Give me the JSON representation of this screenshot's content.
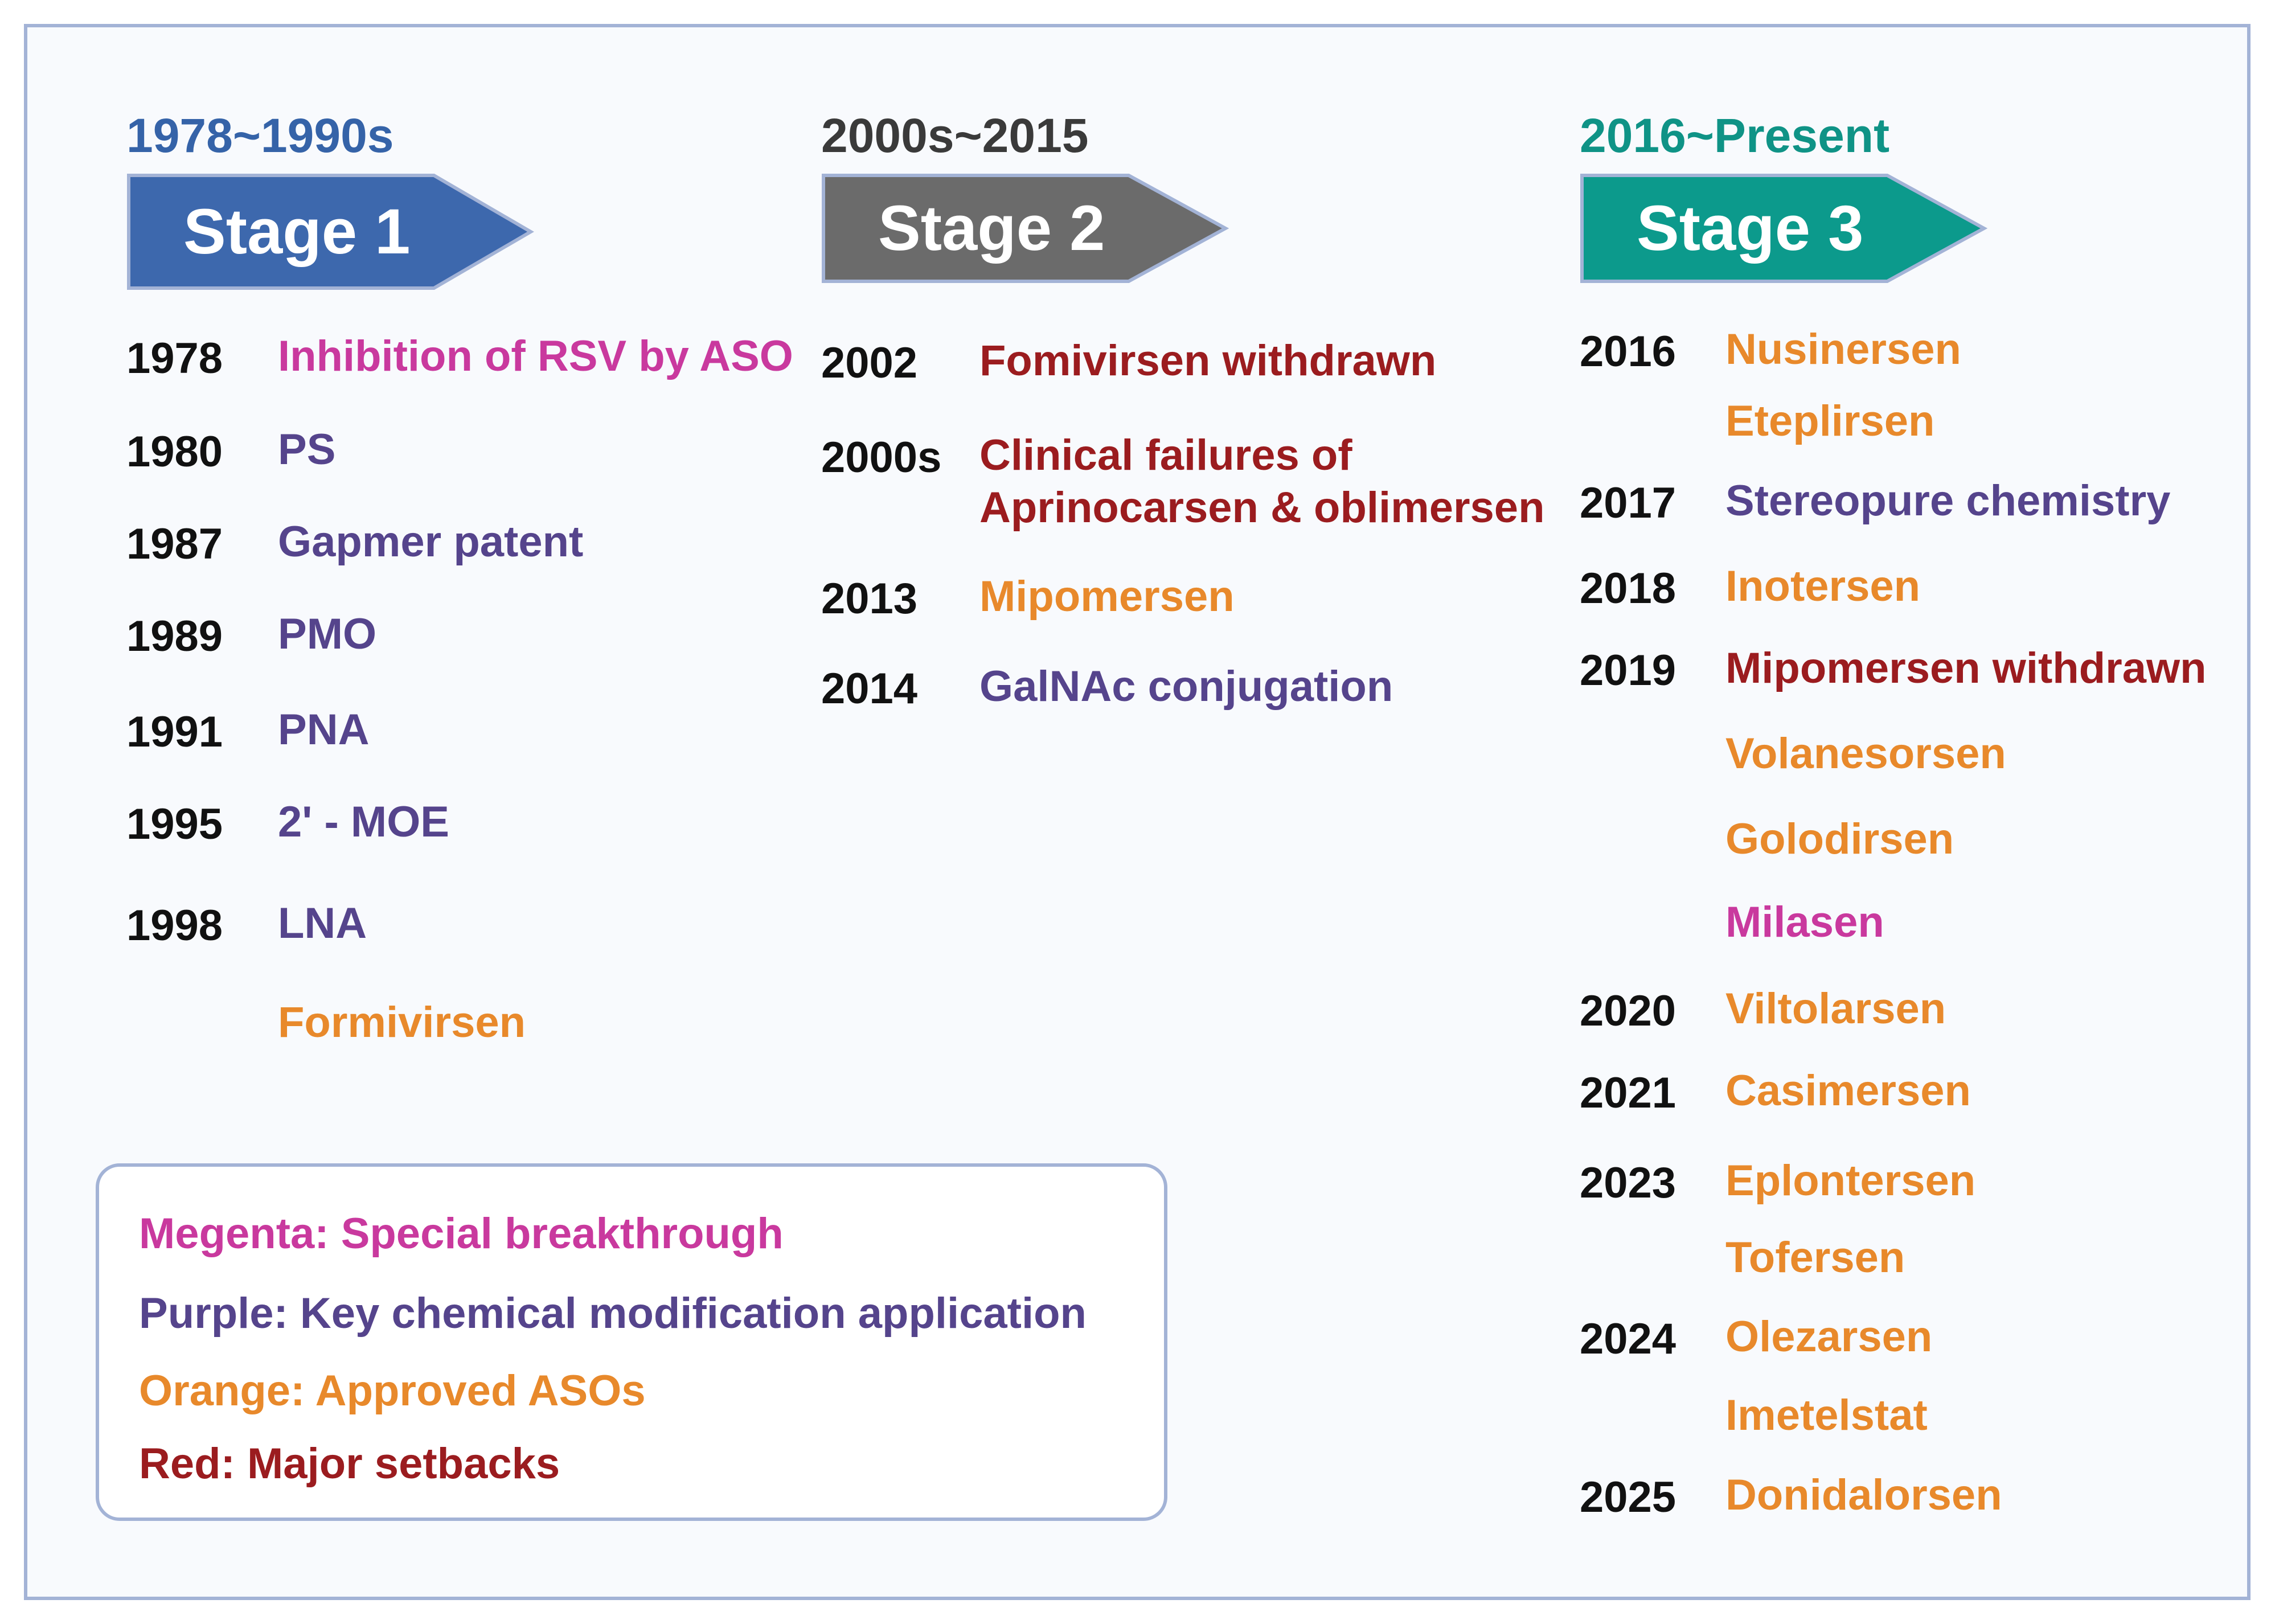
{
  "stages": [
    {
      "era": "1978~1990s",
      "era_color": "#3563a8",
      "label": "Stage 1",
      "arrow_color": "#3d68ad",
      "events": [
        {
          "year": "1978",
          "items": [
            {
              "text": "Inhibition of RSV by ASO",
              "category": "magenta"
            }
          ]
        },
        {
          "year": "1980",
          "items": [
            {
              "text": "PS",
              "category": "purple"
            }
          ]
        },
        {
          "year": "1987",
          "items": [
            {
              "text": "Gapmer patent",
              "category": "purple"
            }
          ]
        },
        {
          "year": "1989",
          "items": [
            {
              "text": "PMO",
              "category": "purple"
            }
          ]
        },
        {
          "year": "1991",
          "items": [
            {
              "text": "PNA",
              "category": "purple"
            }
          ]
        },
        {
          "year": "1995",
          "items": [
            {
              "text": "2' - MOE",
              "category": "purple"
            }
          ]
        },
        {
          "year": "1998",
          "items": [
            {
              "text": "LNA",
              "category": "purple"
            },
            {
              "text": "Formivirsen",
              "category": "orange"
            }
          ]
        }
      ]
    },
    {
      "era": "2000s~2015",
      "era_color": "#3a3a3a",
      "label": "Stage 2",
      "arrow_color": "#6b6b6b",
      "events": [
        {
          "year": "2002",
          "items": [
            {
              "text": "Fomivirsen withdrawn",
              "category": "red"
            }
          ]
        },
        {
          "year": "2000s",
          "items": [
            {
              "text": "Clinical failures of",
              "category": "red"
            },
            {
              "text": "Aprinocarsen & oblimersen",
              "category": "red"
            }
          ]
        },
        {
          "year": "2013",
          "items": [
            {
              "text": "Mipomersen",
              "category": "orange"
            }
          ]
        },
        {
          "year": "2014",
          "items": [
            {
              "text": "GalNAc conjugation",
              "category": "purple"
            }
          ]
        }
      ]
    },
    {
      "era": "2016~Present",
      "era_color": "#0f9386",
      "label": "Stage 3",
      "arrow_color": "#0c9a8c",
      "events": [
        {
          "year": "2016",
          "items": [
            {
              "text": "Nusinersen",
              "category": "orange"
            },
            {
              "text": "Eteplirsen",
              "category": "orange"
            }
          ]
        },
        {
          "year": "2017",
          "items": [
            {
              "text": "Stereopure chemistry",
              "category": "purple"
            }
          ]
        },
        {
          "year": "2018",
          "items": [
            {
              "text": "Inotersen",
              "category": "orange"
            }
          ]
        },
        {
          "year": "2019",
          "items": [
            {
              "text": "Mipomersen withdrawn",
              "category": "red"
            },
            {
              "text": "Volanesorsen",
              "category": "orange"
            },
            {
              "text": "Golodirsen",
              "category": "orange"
            },
            {
              "text": "Milasen",
              "category": "magenta"
            }
          ]
        },
        {
          "year": "2020",
          "items": [
            {
              "text": "Viltolarsen",
              "category": "orange"
            }
          ]
        },
        {
          "year": "2021",
          "items": [
            {
              "text": "Casimersen",
              "category": "orange"
            }
          ]
        },
        {
          "year": "2023",
          "items": [
            {
              "text": "Eplontersen",
              "category": "orange"
            },
            {
              "text": "Tofersen",
              "category": "orange"
            }
          ]
        },
        {
          "year": "2024",
          "items": [
            {
              "text": "Olezarsen",
              "category": "orange"
            },
            {
              "text": "Imetelstat",
              "category": "orange"
            }
          ]
        },
        {
          "year": "2025",
          "items": [
            {
              "text": "Donidalorsen",
              "category": "orange"
            }
          ]
        }
      ]
    }
  ],
  "legend": [
    {
      "text": "Megenta: Special breakthrough",
      "category": "magenta"
    },
    {
      "text": "Purple: Key chemical modification  application",
      "category": "purple"
    },
    {
      "text": "Orange: Approved ASOs",
      "category": "orange"
    },
    {
      "text": "Red: Major setbacks",
      "category": "red"
    }
  ],
  "colors": {
    "magenta": "#c9399e",
    "purple": "#55448c",
    "orange": "#e8892b",
    "red": "#9b1c1f"
  }
}
